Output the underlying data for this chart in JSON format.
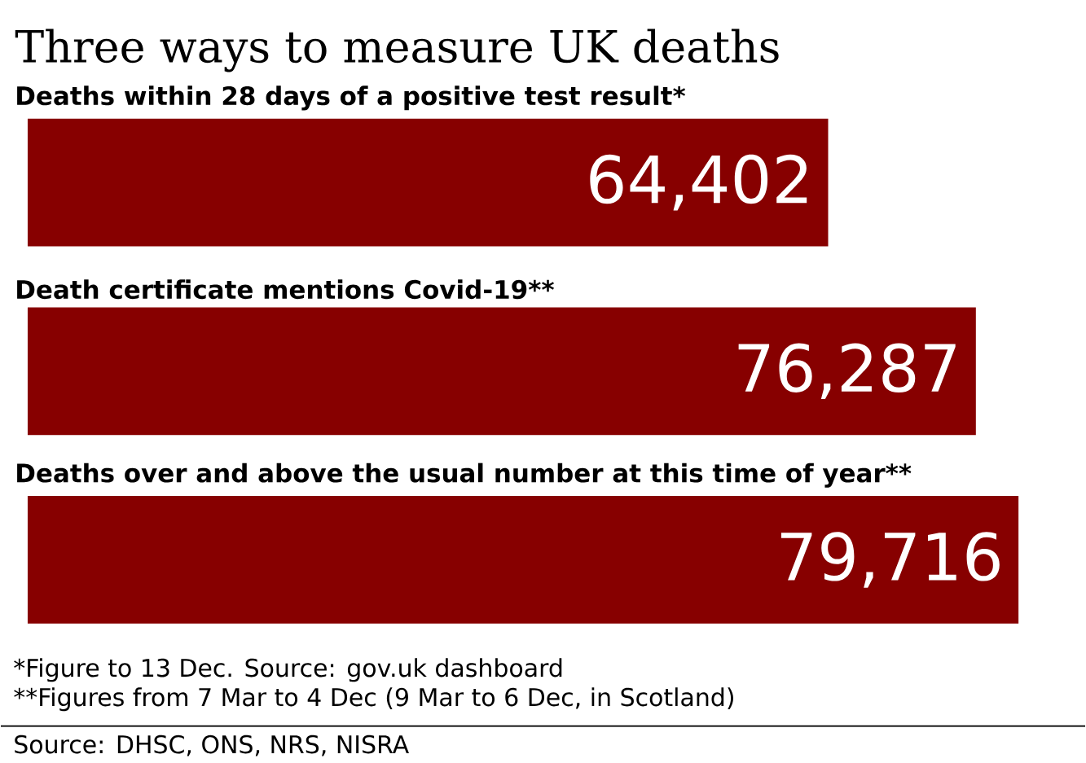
{
  "chart_data": {
    "type": "bar",
    "orientation": "horizontal",
    "title": "Three ways to measure UK deaths",
    "categories": [
      "Deaths within 28 days of a positive test result*",
      "Death certificate mentions Covid-19**",
      "Deaths over and above the usual number at this time of year**"
    ],
    "values": [
      64402,
      76287,
      79716
    ],
    "value_labels": [
      "64,402",
      "76,287",
      "79,716"
    ],
    "color": "#870000",
    "annotations": [
      "*Figure to 13 Dec. Source: gov.uk dashboard",
      "**Figures from 7 Mar to 4 Dec (9 Mar to 6 Dec, in Scotland)",
      "Source: DHSC, ONS, NRS, NISRA"
    ]
  }
}
